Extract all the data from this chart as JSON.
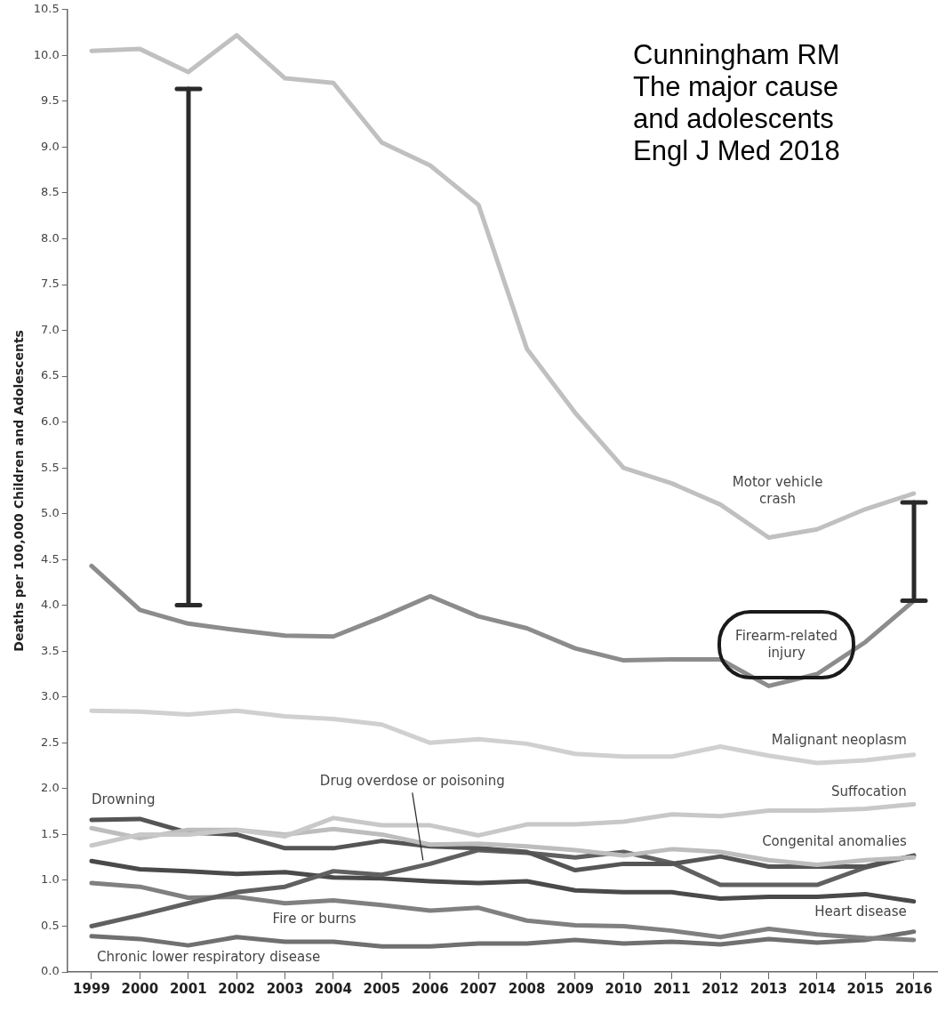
{
  "chart_data": {
    "type": "line",
    "categories": [
      "1999",
      "2000",
      "2001",
      "2002",
      "2003",
      "2004",
      "2005",
      "2006",
      "2007",
      "2008",
      "2009",
      "2010",
      "2011",
      "2012",
      "2013",
      "2014",
      "2015",
      "2016"
    ],
    "ylabel": "Deaths per 100,000 Children and Adolescents",
    "ylim": [
      0,
      10.5
    ],
    "yticks": [
      {
        "value": 0,
        "label": "0.0"
      },
      {
        "value": 0.5,
        "label": "0.5"
      },
      {
        "value": 1,
        "label": "1.0"
      },
      {
        "value": 1.5,
        "label": "1.5"
      },
      {
        "value": 2,
        "label": "2.0"
      },
      {
        "value": 2.5,
        "label": "2.5"
      },
      {
        "value": 3,
        "label": "3.0"
      },
      {
        "value": 3.5,
        "label": "3.5"
      },
      {
        "value": 4,
        "label": "4.0"
      },
      {
        "value": 4.5,
        "label": "4.5"
      },
      {
        "value": 5,
        "label": "5.0"
      },
      {
        "value": 5.5,
        "label": "5.5"
      },
      {
        "value": 6,
        "label": "6.0"
      },
      {
        "value": 6.5,
        "label": "6.5"
      },
      {
        "value": 7,
        "label": "7.0"
      },
      {
        "value": 7.5,
        "label": "7.5"
      },
      {
        "value": 8,
        "label": "8.0"
      },
      {
        "value": 8.5,
        "label": "8.5"
      },
      {
        "value": 9,
        "label": "9.0"
      },
      {
        "value": 9.5,
        "label": "9.5"
      },
      {
        "value": 10,
        "label": "10.0"
      },
      {
        "value": 10.5,
        "label": "10.5"
      }
    ],
    "grid": false,
    "legend": false,
    "marker": "none",
    "line_style": "solid",
    "annotations": [
      "Cunningham RM\nThe major cause\nand adolescents\nEngl J Med 2018"
    ],
    "series": [
      {
        "name": "Motor vehicle crash",
        "color": "#c0c0c0",
        "values": [
          10.05,
          10.07,
          9.82,
          10.22,
          9.75,
          9.7,
          9.05,
          8.8,
          8.37,
          6.8,
          6.1,
          5.5,
          5.33,
          5.1,
          4.74,
          4.83,
          5.05,
          5.22
        ]
      },
      {
        "name": "Firearm-related injury",
        "color": "#8c8c8c",
        "values": [
          4.43,
          3.95,
          3.8,
          3.73,
          3.67,
          3.66,
          3.87,
          4.1,
          3.88,
          3.75,
          3.53,
          3.4,
          3.41,
          3.41,
          3.12,
          3.25,
          3.6,
          4.05
        ]
      },
      {
        "name": "Malignant neoplasm",
        "color": "#d0d0d0",
        "values": [
          2.85,
          2.84,
          2.81,
          2.85,
          2.79,
          2.76,
          2.7,
          2.5,
          2.54,
          2.49,
          2.38,
          2.35,
          2.35,
          2.46,
          2.36,
          2.28,
          2.31,
          2.37
        ]
      },
      {
        "name": "Suffocation",
        "color": "#c8c8c8",
        "values": [
          1.38,
          1.5,
          1.5,
          1.55,
          1.48,
          1.68,
          1.6,
          1.6,
          1.49,
          1.61,
          1.61,
          1.64,
          1.72,
          1.7,
          1.76,
          1.76,
          1.78,
          1.83
        ]
      },
      {
        "name": "Congenital anomalies",
        "color": "#bdbdbd",
        "values": [
          1.57,
          1.46,
          1.55,
          1.55,
          1.5,
          1.56,
          1.5,
          1.39,
          1.4,
          1.37,
          1.33,
          1.27,
          1.34,
          1.31,
          1.22,
          1.17,
          1.22,
          1.25
        ]
      },
      {
        "name": "Drowning",
        "color": "#555555",
        "values": [
          1.66,
          1.67,
          1.52,
          1.5,
          1.35,
          1.35,
          1.43,
          1.37,
          1.35,
          1.31,
          1.11,
          1.18,
          1.18,
          1.26,
          1.15,
          1.15,
          1.15,
          1.27
        ]
      },
      {
        "name": "Drug overdose or poisoning",
        "color": "#606060",
        "values": [
          0.5,
          0.62,
          0.75,
          0.87,
          0.93,
          1.1,
          1.06,
          1.18,
          1.33,
          1.3,
          1.25,
          1.31,
          1.19,
          0.95,
          0.95,
          0.95,
          1.14,
          1.27
        ]
      },
      {
        "name": "Heart disease",
        "color": "#4a4a4a",
        "values": [
          1.21,
          1.12,
          1.1,
          1.07,
          1.09,
          1.03,
          1.02,
          0.99,
          0.97,
          0.99,
          0.89,
          0.87,
          0.87,
          0.8,
          0.82,
          0.82,
          0.85,
          0.77
        ]
      },
      {
        "name": "Fire or burns",
        "color": "#808080",
        "values": [
          0.97,
          0.93,
          0.81,
          0.82,
          0.75,
          0.78,
          0.73,
          0.67,
          0.7,
          0.56,
          0.51,
          0.5,
          0.45,
          0.38,
          0.47,
          0.41,
          0.37,
          0.35
        ]
      },
      {
        "name": "Chronic lower respiratory disease",
        "color": "#707070",
        "values": [
          0.39,
          0.36,
          0.29,
          0.38,
          0.33,
          0.33,
          0.28,
          0.28,
          0.31,
          0.31,
          0.35,
          0.31,
          0.33,
          0.3,
          0.36,
          0.32,
          0.35,
          0.44
        ]
      }
    ]
  }
}
